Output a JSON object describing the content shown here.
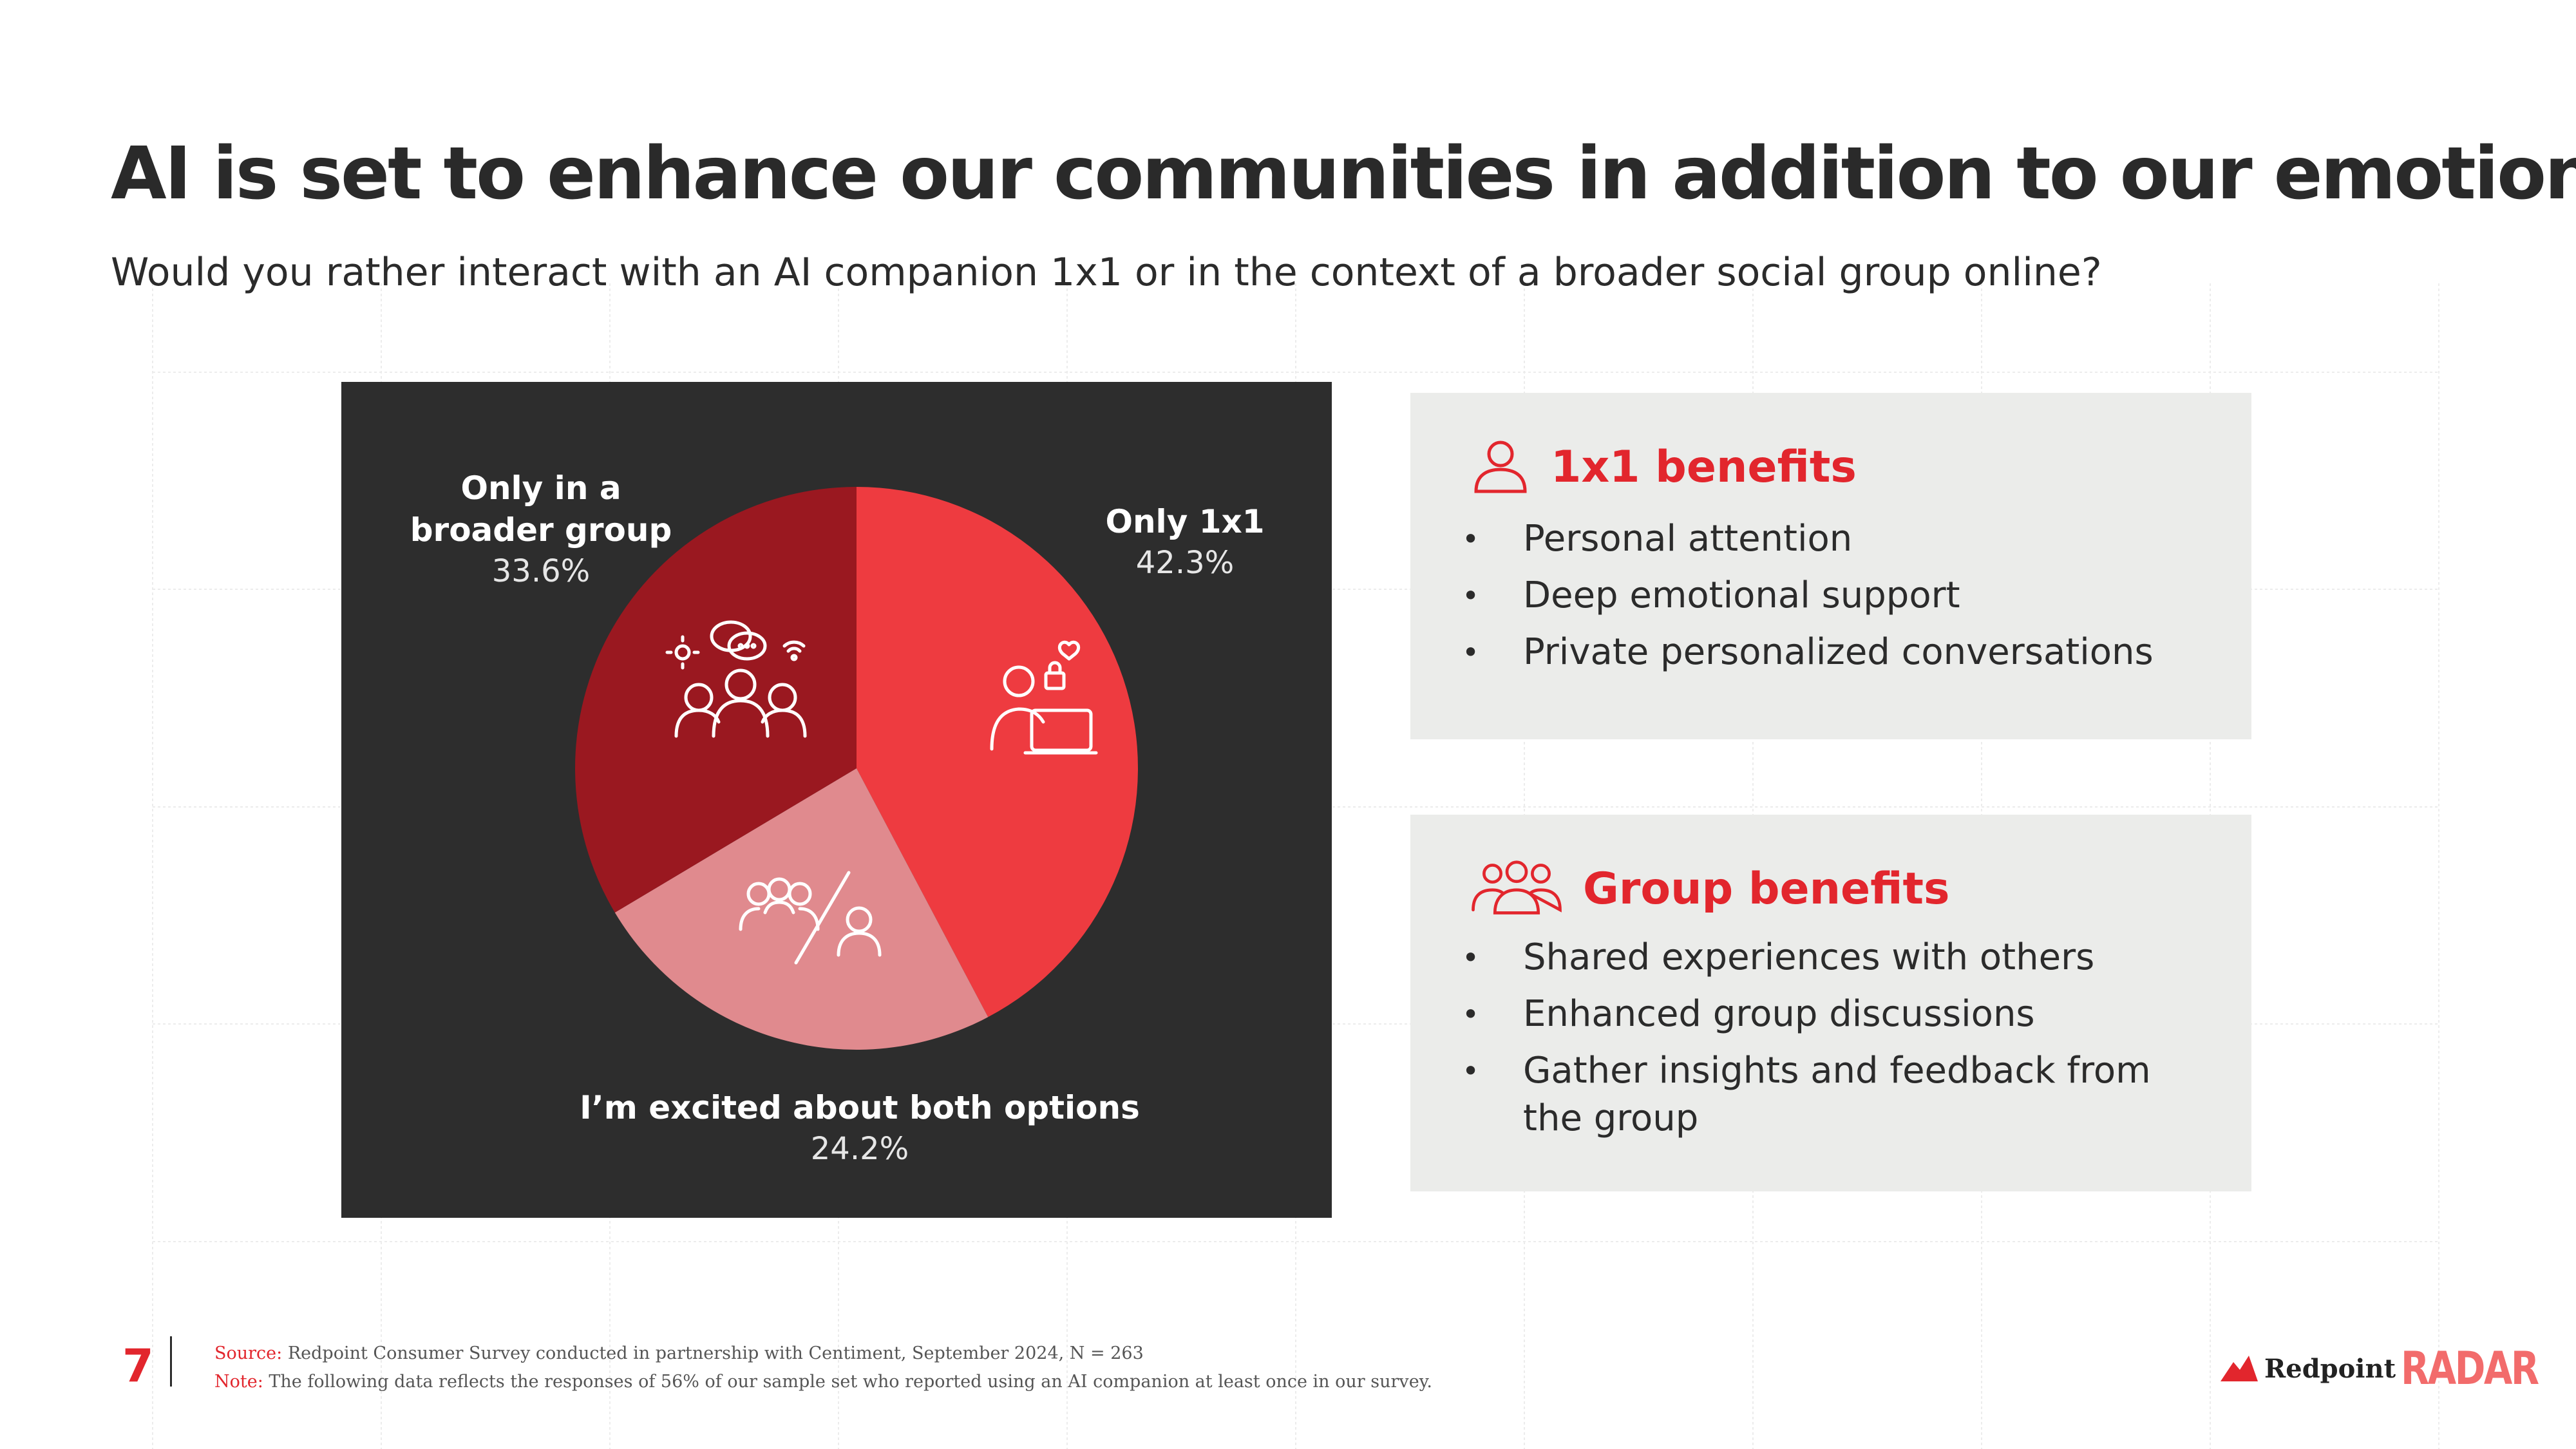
{
  "page": {
    "title": "AI is set to enhance our communities in addition to our emotions",
    "title_period": ".",
    "subtitle": "Would you rather interact with an AI companion 1x1 or in the context of a broader social group online?",
    "page_number": "7"
  },
  "chart_data": {
    "type": "pie",
    "slices": [
      {
        "label_line1": "Only 1x1",
        "label_line2": "",
        "value": 42.3,
        "display": "42.3%",
        "color": "#ee3b40",
        "icon": "person-laptop-icon"
      },
      {
        "label_line1": "I’m excited about  both options",
        "label_line2": "",
        "value": 24.2,
        "display": "24.2%",
        "color": "#e08a8e",
        "icon": "person-vs-group-icon"
      },
      {
        "label_line1": "Only in a",
        "label_line2": "broader group",
        "value": 33.6,
        "display": "33.6%",
        "color": "#9a1820",
        "icon": "group-chat-icon"
      }
    ],
    "background": "#2d2d2d"
  },
  "cards": {
    "one_on_one": {
      "title": "1x1 benefits",
      "icon": "person-icon",
      "items": [
        "Personal attention",
        "Deep emotional support",
        "Private personalized conversations"
      ]
    },
    "group": {
      "title": "Group benefits",
      "icon": "group-icon",
      "items": [
        "Shared experiences with others",
        "Enhanced group discussions",
        "Gather insights and feedback from the group"
      ]
    }
  },
  "footer": {
    "source_key": "Source:",
    "source_text": " Redpoint Consumer Survey conducted in partnership with Centiment, September 2024, N = 263",
    "note_key": "Note:",
    "note_text": " The following data reflects the responses of 56% of our sample set who reported using an AI companion at least once in our survey."
  },
  "brand": {
    "name": "Redpoint",
    "product": "RADAR"
  },
  "colors": {
    "accent": "#e2262d",
    "card_bg": "#ebecea",
    "text": "#2b2b2b"
  }
}
